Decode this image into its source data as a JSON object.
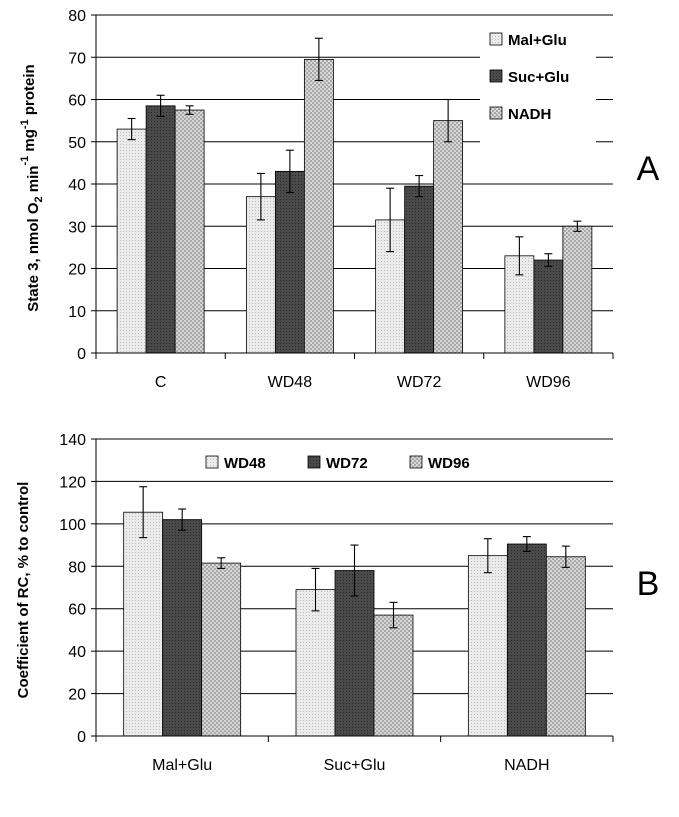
{
  "chart_data": [
    {
      "type": "bar",
      "panel_label": "A",
      "categories": [
        "C",
        "WD48",
        "WD72",
        "WD96"
      ],
      "series": [
        {
          "name": "Mal+Glu",
          "values": [
            53,
            37,
            31.5,
            23
          ],
          "errors": [
            2.5,
            5.5,
            7.5,
            4.5
          ],
          "pattern": "light"
        },
        {
          "name": "Suc+Glu",
          "values": [
            58.5,
            43,
            39.5,
            22
          ],
          "errors": [
            2.5,
            5,
            2.5,
            1.5
          ],
          "pattern": "dark"
        },
        {
          "name": "NADH",
          "values": [
            57.5,
            69.5,
            55,
            30
          ],
          "errors": [
            1,
            5,
            5,
            1.2
          ],
          "pattern": "medium"
        }
      ],
      "ylabel_parts": [
        "State 3, nmol O",
        "2",
        " min",
        "-1",
        " mg",
        "-1",
        " protein"
      ],
      "ylim": [
        0,
        80
      ],
      "yticks": [
        0,
        10,
        20,
        30,
        40,
        50,
        60,
        70,
        80
      ],
      "grid": true,
      "legend": "top-right, vertical"
    },
    {
      "type": "bar",
      "panel_label": "B",
      "categories": [
        "Mal+Glu",
        "Suc+Glu",
        "NADH"
      ],
      "series": [
        {
          "name": "WD48",
          "values": [
            105.5,
            69,
            85
          ],
          "errors": [
            12,
            10,
            8
          ],
          "pattern": "light"
        },
        {
          "name": "WD72",
          "values": [
            102,
            78,
            90.5
          ],
          "errors": [
            5,
            12,
            3.5
          ],
          "pattern": "dark"
        },
        {
          "name": "WD96",
          "values": [
            81.5,
            57,
            84.5
          ],
          "errors": [
            2.5,
            6,
            5
          ],
          "pattern": "medium"
        }
      ],
      "ylabel": "Coefficient of RC, % to control",
      "ylim": [
        0,
        140
      ],
      "yticks": [
        0,
        20,
        40,
        60,
        80,
        100,
        120,
        140
      ],
      "grid": true,
      "legend": "top, horizontal"
    }
  ]
}
